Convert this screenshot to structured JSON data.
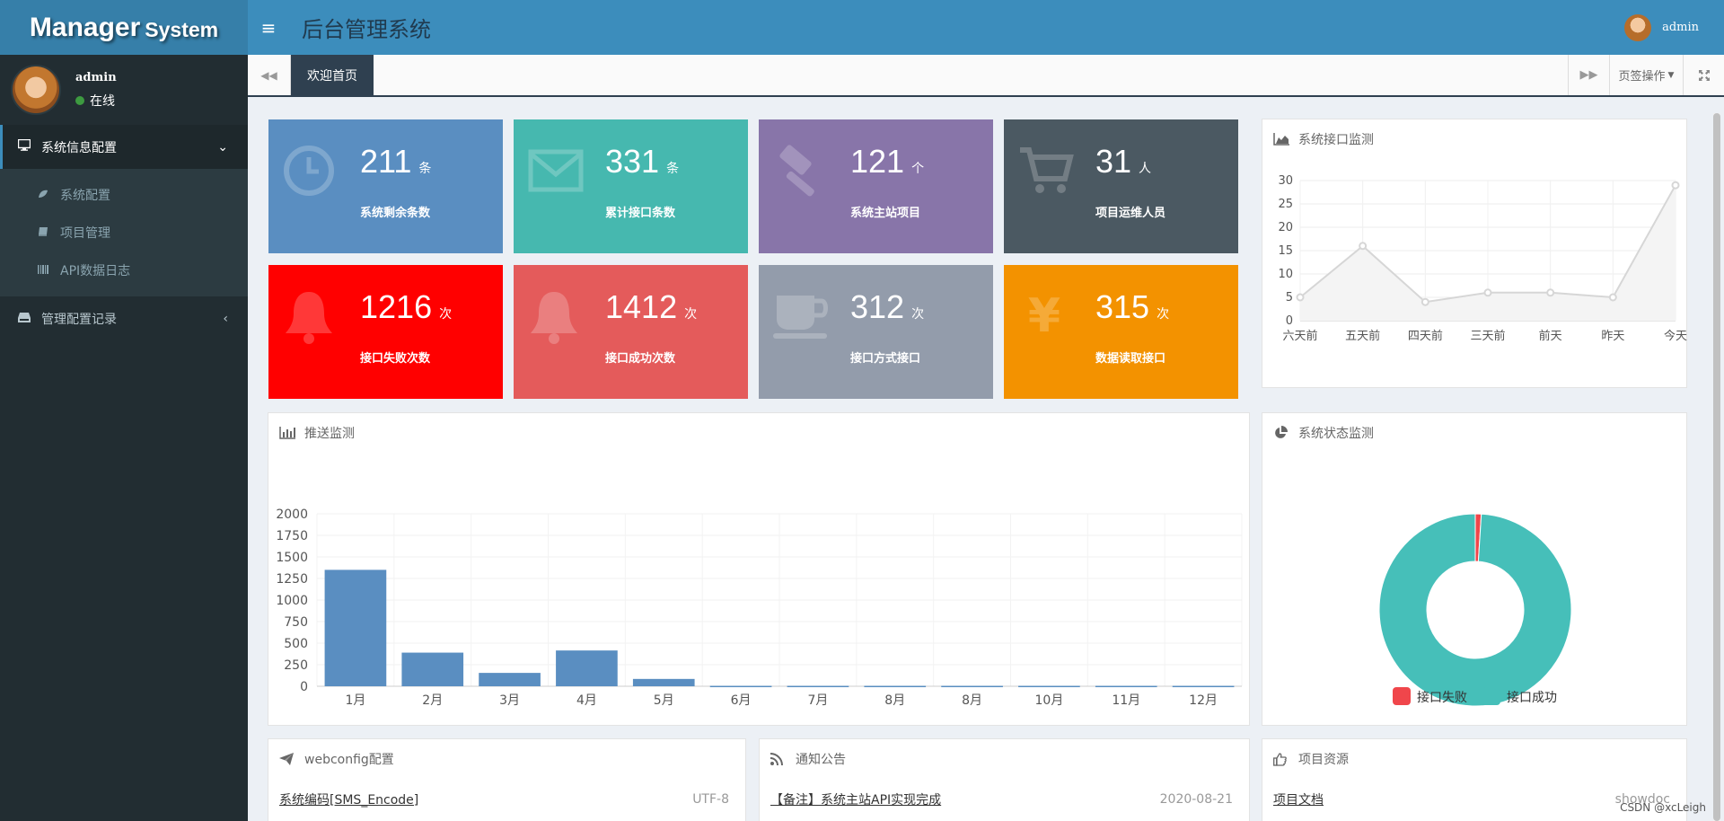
{
  "brand": {
    "part1": "Manager",
    "part2": "System"
  },
  "header": {
    "title": "后台管理系统",
    "menu_toggle": "≡",
    "user": "admin"
  },
  "sidebar": {
    "user": {
      "name": "admin",
      "status": "在线"
    },
    "menus": [
      {
        "label": "系统信息配置",
        "icon": "desktop-icon",
        "expanded": true,
        "items": [
          {
            "label": "系统配置",
            "icon": "leaf-icon"
          },
          {
            "label": "项目管理",
            "icon": "book-icon"
          },
          {
            "label": "API数据日志",
            "icon": "barcode-icon"
          }
        ]
      },
      {
        "label": "管理配置记录",
        "icon": "hdd-icon",
        "expanded": false
      }
    ]
  },
  "tabs": {
    "active": "欢迎首页",
    "operations": "页签操作"
  },
  "stats": [
    {
      "value": "211",
      "unit": "条",
      "label": "系统剩余条数",
      "color": "#5a8ec1",
      "icon": "clock-icon"
    },
    {
      "value": "331",
      "unit": "条",
      "label": "累计接口条数",
      "color": "#46b8af",
      "icon": "envelope-icon"
    },
    {
      "value": "121",
      "unit": "个",
      "label": "系统主站项目",
      "color": "#8875a9",
      "icon": "gavel-icon"
    },
    {
      "value": "31",
      "unit": "人",
      "label": "项目运维人员",
      "color": "#4b5962",
      "icon": "cart-icon"
    },
    {
      "value": "1216",
      "unit": "次",
      "label": "接口失败次数",
      "color": "#ff0000",
      "icon": "bell-icon"
    },
    {
      "value": "1412",
      "unit": "次",
      "label": "接口成功次数",
      "color": "#e45b5b",
      "icon": "bell-icon"
    },
    {
      "value": "312",
      "unit": "次",
      "label": "接口方式接口",
      "color": "#939cab",
      "icon": "coffee-icon"
    },
    {
      "value": "315",
      "unit": "次",
      "label": "数据读取接口",
      "color": "#f39200",
      "icon": "yen-icon"
    }
  ],
  "panels": {
    "api_monitor": "系统接口监测",
    "push_monitor": "推送监测",
    "status_monitor": "系统状态监测",
    "webconfig": "webconfig配置",
    "notice": "通知公告",
    "resources": "项目资源"
  },
  "lists": {
    "webconfig": {
      "link": "系统编码[SMS_Encode]",
      "meta": "UTF-8"
    },
    "notice": {
      "link": "【备注】系统主站API实现完成",
      "meta": "2020-08-21"
    },
    "resources": {
      "link": "项目文档",
      "meta": "showdoc"
    }
  },
  "watermark": "CSDN @xcLeigh",
  "chart_data": [
    {
      "type": "line",
      "title": "系统接口监测",
      "categories": [
        "六天前",
        "五天前",
        "四天前",
        "三天前",
        "前天",
        "昨天",
        "今天"
      ],
      "values": [
        5,
        16,
        4,
        6,
        6,
        5,
        29
      ],
      "ylim": [
        0,
        30
      ],
      "yticks": [
        0,
        5,
        10,
        15,
        20,
        25,
        30
      ],
      "grid": true,
      "color": "#d6d6d6"
    },
    {
      "type": "bar",
      "title": "推送监测",
      "categories": [
        "1月",
        "2月",
        "3月",
        "4月",
        "5月",
        "6月",
        "7月",
        "8月",
        "8月",
        "10月",
        "11月",
        "12月"
      ],
      "values": [
        1350,
        390,
        155,
        415,
        85,
        5,
        5,
        5,
        5,
        5,
        5,
        5
      ],
      "ylim": [
        0,
        2000
      ],
      "yticks": [
        0,
        250,
        500,
        750,
        1000,
        1250,
        1500,
        1750,
        2000
      ],
      "grid": true,
      "color": "#5a8ec1"
    },
    {
      "type": "pie",
      "title": "系统状态监测",
      "donut": true,
      "series": [
        {
          "name": "接口失败",
          "value": 1,
          "color": "#f0464b"
        },
        {
          "name": "接口成功",
          "value": 99,
          "color": "#46bfb9"
        }
      ],
      "legend": "bottom"
    }
  ]
}
